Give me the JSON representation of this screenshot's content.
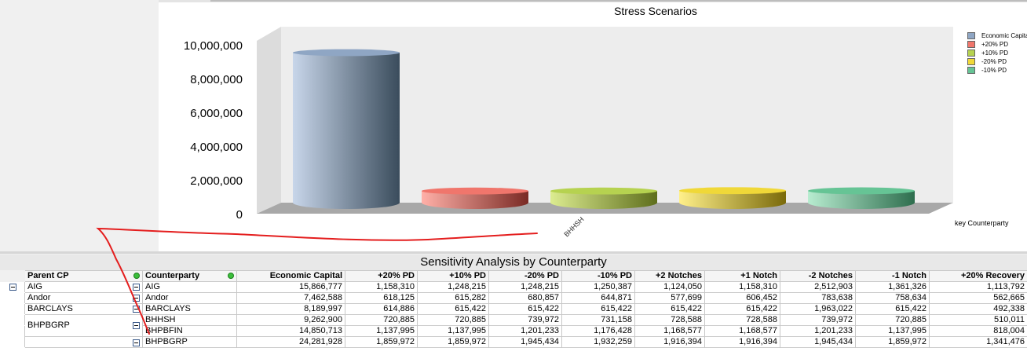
{
  "chart": {
    "title": "Stress Scenarios",
    "x_axis_title": "key Counterparty",
    "legend": [
      {
        "label": "Economic Capital",
        "color": "#8fa6c4"
      },
      {
        "label": "+20% PD",
        "color": "#f0766c"
      },
      {
        "label": "+10% PD",
        "color": "#b6d250"
      },
      {
        "label": "-20% PD",
        "color": "#f0d838"
      },
      {
        "label": "-10% PD",
        "color": "#66c495"
      }
    ]
  },
  "chart_data": {
    "type": "bar",
    "title": "Stress Scenarios",
    "xlabel": "key Counterparty",
    "ylabel": "",
    "categories": [
      "BHHSH"
    ],
    "ylim": [
      0,
      10000000
    ],
    "yticks": [
      "10,000,000",
      "8,000,000",
      "6,000,000",
      "4,000,000",
      "2,000,000",
      "0"
    ],
    "series": [
      {
        "name": "Economic Capital",
        "values": [
          9262900
        ]
      },
      {
        "name": "+20% PD",
        "values": [
          720885
        ]
      },
      {
        "name": "+10% PD",
        "values": [
          720885
        ]
      },
      {
        "name": "-20% PD",
        "values": [
          739972
        ]
      },
      {
        "name": "-10% PD",
        "values": [
          731158
        ]
      }
    ],
    "legend_position": "right",
    "grid": false
  },
  "table": {
    "title": "Sensitivity Analysis by Counterparty",
    "headers": [
      "Parent CP",
      "Counterparty",
      "Economic Capital",
      "+20% PD",
      "+10% PD",
      "-20% PD",
      "-10% PD",
      "+2 Notches",
      "+1 Notch",
      "-2 Notches",
      "-1 Notch",
      "+20% Recovery"
    ],
    "rows": [
      {
        "parent": "AIG",
        "cp": "AIG",
        "v": [
          "15,866,777",
          "1,158,310",
          "1,248,215",
          "1,248,215",
          "1,250,387",
          "1,124,050",
          "1,158,310",
          "2,512,903",
          "1,361,326",
          "1,113,792"
        ]
      },
      {
        "parent": "Andor",
        "cp": "Andor",
        "v": [
          "7,462,588",
          "618,125",
          "615,282",
          "680,857",
          "644,871",
          "577,699",
          "606,452",
          "783,638",
          "758,634",
          "562,665"
        ]
      },
      {
        "parent": "BARCLAYS",
        "cp": "BARCLAYS",
        "v": [
          "8,189,997",
          "614,886",
          "615,422",
          "615,422",
          "615,422",
          "615,422",
          "615,422",
          "1,963,022",
          "615,422",
          "492,338"
        ]
      },
      {
        "parent": "BHPBGRP",
        "cp": "BHHSH",
        "v": [
          "9,262,900",
          "720,885",
          "720,885",
          "739,972",
          "731,158",
          "728,588",
          "728,588",
          "739,972",
          "720,885",
          "510,011"
        ]
      },
      {
        "parent": "",
        "cp": "BHPBFIN",
        "v": [
          "14,850,713",
          "1,137,995",
          "1,137,995",
          "1,201,233",
          "1,176,428",
          "1,168,577",
          "1,168,577",
          "1,201,233",
          "1,137,995",
          "818,004"
        ]
      },
      {
        "parent": "",
        "cp": "BHPBGRP",
        "v": [
          "24,281,928",
          "1,859,972",
          "1,859,972",
          "1,945,434",
          "1,932,259",
          "1,916,394",
          "1,916,394",
          "1,945,434",
          "1,859,972",
          "1,341,476"
        ]
      }
    ]
  }
}
